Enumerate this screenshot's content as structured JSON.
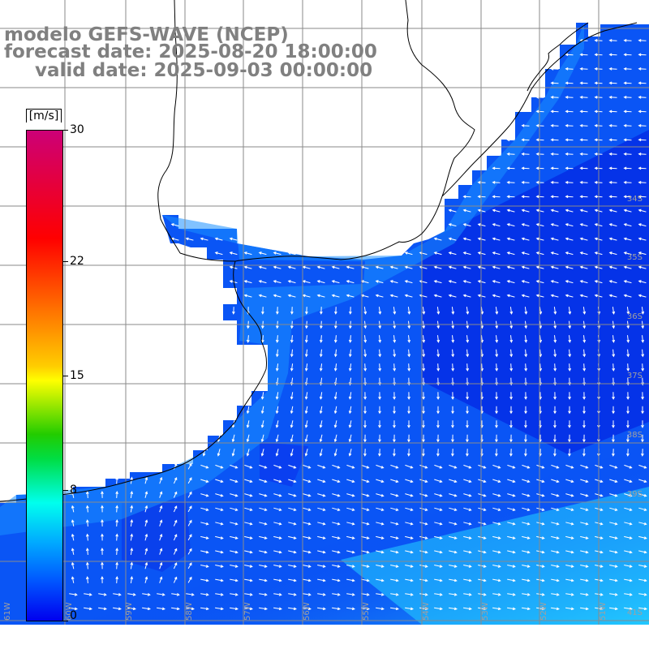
{
  "title": {
    "line1": "modelo GEFS-WAVE (NCEP)",
    "line2": "forecast date: 2025-08-20 18:00:00",
    "line3": "valid date: 2025-09-03 00:00:00"
  },
  "colorbar": {
    "unit": "[m/s]",
    "ticks": [
      {
        "label": "30",
        "value": 30
      },
      {
        "label": "22",
        "value": 22
      },
      {
        "label": "15",
        "value": 15
      },
      {
        "label": "8",
        "value": 8
      },
      {
        "label": "0",
        "value": 0
      }
    ],
    "range": [
      0,
      30
    ],
    "colors": [
      "#0000ee",
      "#0055ff",
      "#00aaff",
      "#00ffee",
      "#00dd44",
      "#ffff00",
      "#ff5500",
      "#ff0000",
      "#cc0077"
    ]
  },
  "map": {
    "lat_labels": [
      "34S",
      "35S",
      "36S",
      "37S",
      "38S",
      "39S",
      "41S"
    ],
    "lon_labels": [
      "61W",
      "60W",
      "59W",
      "58W",
      "57W",
      "56W",
      "55W",
      "54W",
      "53W",
      "52W",
      "51W"
    ],
    "field_colors": {
      "land": "#ffffff",
      "grid": "#808080",
      "coast": "#000000",
      "arrow": "#ffffff"
    }
  }
}
